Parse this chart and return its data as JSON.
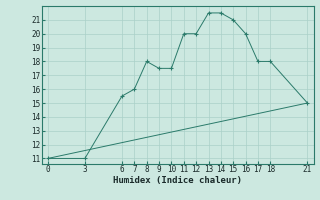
{
  "xlabel": "Humidex (Indice chaleur)",
  "bg_color": "#cce8e0",
  "grid_color": "#aad0c8",
  "line_color": "#2a7a6a",
  "line1_x": [
    0,
    3,
    6,
    7,
    8,
    9,
    10,
    11,
    12,
    13,
    14,
    15,
    16,
    17,
    18,
    21
  ],
  "line1_y": [
    11,
    11,
    15.5,
    16,
    18,
    17.5,
    17.5,
    20,
    20,
    21.5,
    21.5,
    21,
    20,
    18,
    18,
    15
  ],
  "line2_x": [
    0,
    21
  ],
  "line2_y": [
    11,
    15
  ],
  "xlim": [
    -0.5,
    21.5
  ],
  "ylim": [
    10.6,
    22.0
  ],
  "xticks": [
    0,
    3,
    6,
    7,
    8,
    9,
    10,
    11,
    12,
    13,
    14,
    15,
    16,
    17,
    18,
    21
  ],
  "yticks": [
    11,
    12,
    13,
    14,
    15,
    16,
    17,
    18,
    19,
    20,
    21
  ],
  "tick_fontsize": 5.5,
  "label_fontsize": 6.5
}
